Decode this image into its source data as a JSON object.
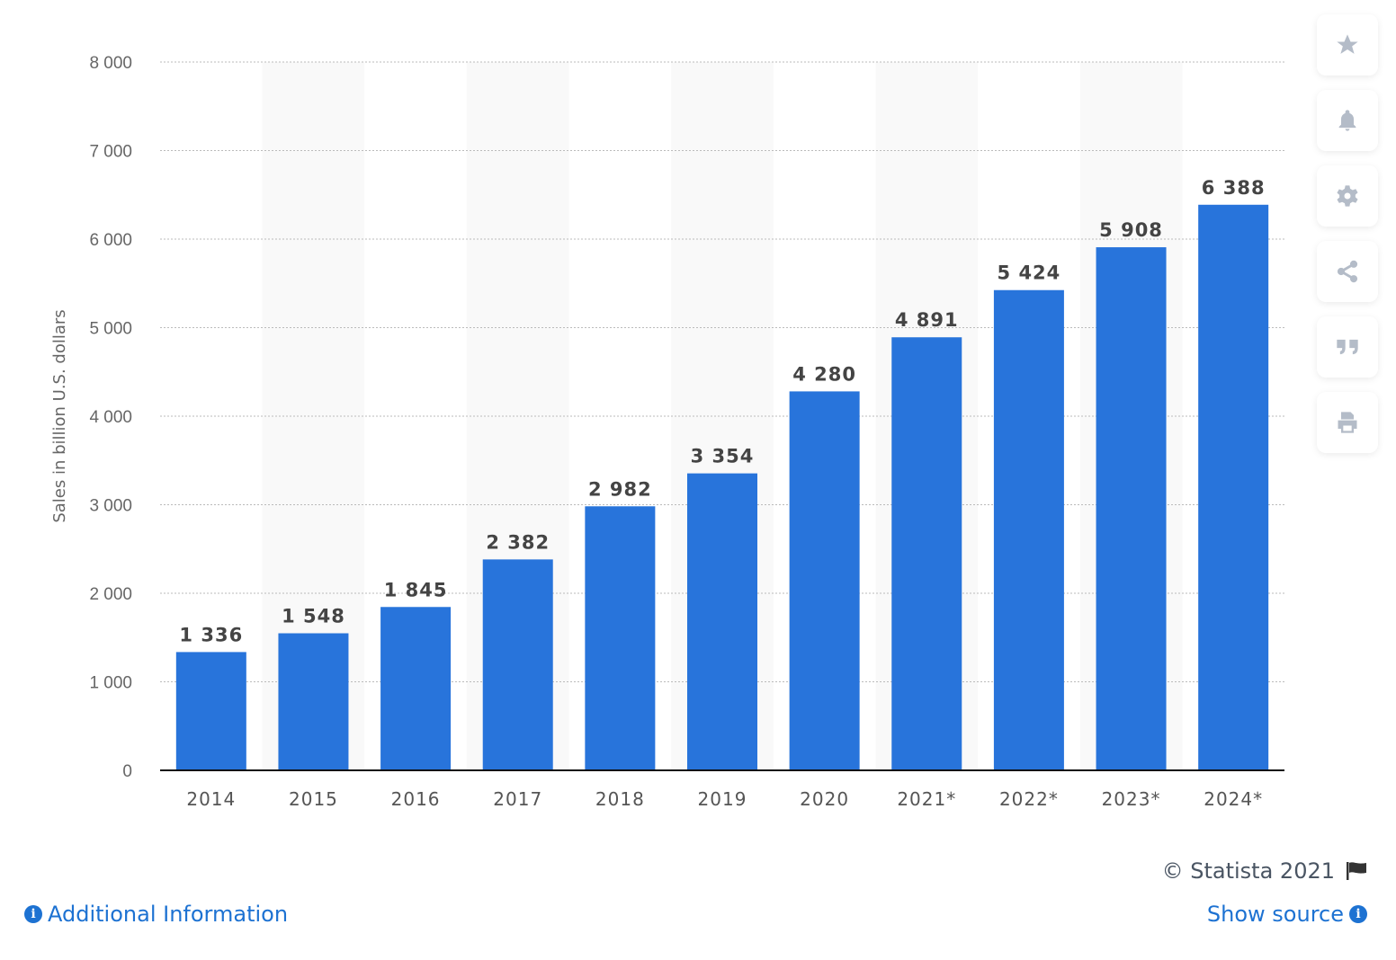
{
  "chart_data": {
    "type": "bar",
    "categories": [
      "2014",
      "2015",
      "2016",
      "2017",
      "2018",
      "2019",
      "2020",
      "2021*",
      "2022*",
      "2023*",
      "2024*"
    ],
    "values": [
      1336,
      1548,
      1845,
      2382,
      2982,
      3354,
      4280,
      4891,
      5424,
      5908,
      6388
    ],
    "value_labels": [
      "1 336",
      "1 548",
      "1 845",
      "2 382",
      "2 982",
      "3 354",
      "4 280",
      "4 891",
      "5 424",
      "5 908",
      "6 388"
    ],
    "ylabel": "Sales in billion U.S. dollars",
    "xlabel": "",
    "ylim": [
      0,
      8000
    ],
    "yticks": [
      0,
      1000,
      2000,
      3000,
      4000,
      5000,
      6000,
      7000,
      8000
    ],
    "ytick_labels": [
      "0",
      "1 000",
      "2 000",
      "3 000",
      "4 000",
      "5 000",
      "6 000",
      "7 000",
      "8 000"
    ],
    "grid": true,
    "bar_color": "#2874db",
    "band_color": "#f9f9f9"
  },
  "sidebar": {
    "icons": [
      "star-icon",
      "bell-icon",
      "gear-icon",
      "share-icon",
      "quote-icon",
      "print-icon"
    ],
    "icon_color": "#b4bcc8"
  },
  "footer": {
    "copyright": "© Statista 2021",
    "additional_info": "Additional Information",
    "show_source": "Show source",
    "link_color": "#1d72d2"
  }
}
